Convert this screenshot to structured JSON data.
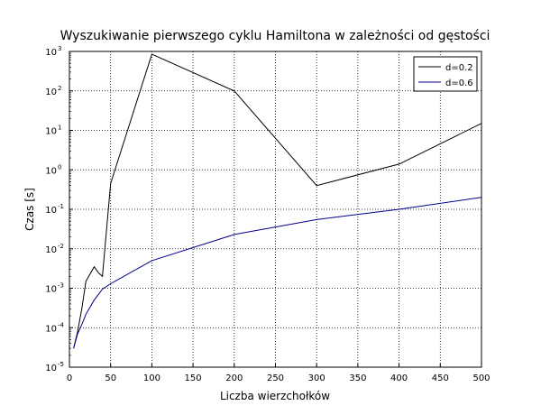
{
  "chart_data": {
    "type": "line",
    "title": "Wyszukiwanie pierwszego cyklu Hamiltona w zależności od gęstości",
    "xlabel": "Liczba wierzchołków",
    "ylabel": "Czas [s]",
    "xlim": [
      0,
      500
    ],
    "ylim": [
      1e-05,
      1000
    ],
    "y_scale": "log",
    "grid": true,
    "legend_position": "top-right",
    "x_ticks": [
      "0",
      "50",
      "100",
      "150",
      "200",
      "250",
      "300",
      "350",
      "400",
      "450",
      "500"
    ],
    "y_ticks": [
      {
        "base": "10",
        "exp": "-5"
      },
      {
        "base": "10",
        "exp": "-4"
      },
      {
        "base": "10",
        "exp": "-3"
      },
      {
        "base": "10",
        "exp": "-2"
      },
      {
        "base": "10",
        "exp": "-1"
      },
      {
        "base": "10",
        "exp": "0"
      },
      {
        "base": "10",
        "exp": "1"
      },
      {
        "base": "10",
        "exp": "2"
      },
      {
        "base": "10",
        "exp": "3"
      }
    ],
    "series": [
      {
        "name": "d=0.2",
        "color": "#000000",
        "x": [
          5,
          10,
          15,
          20,
          30,
          35,
          40,
          50,
          100,
          200,
          300,
          400,
          500
        ],
        "y": [
          3e-05,
          8e-05,
          0.0003,
          0.0015,
          0.0035,
          0.0025,
          0.002,
          0.45,
          850,
          100,
          0.4,
          1.4,
          15
        ]
      },
      {
        "name": "d=0.6",
        "color": "#00008b",
        "x": [
          5,
          10,
          15,
          20,
          30,
          40,
          50,
          100,
          200,
          300,
          400,
          500
        ],
        "y": [
          3e-05,
          7e-05,
          0.00012,
          0.00022,
          0.0005,
          0.00095,
          0.0013,
          0.005,
          0.023,
          0.055,
          0.1,
          0.2
        ]
      }
    ]
  }
}
